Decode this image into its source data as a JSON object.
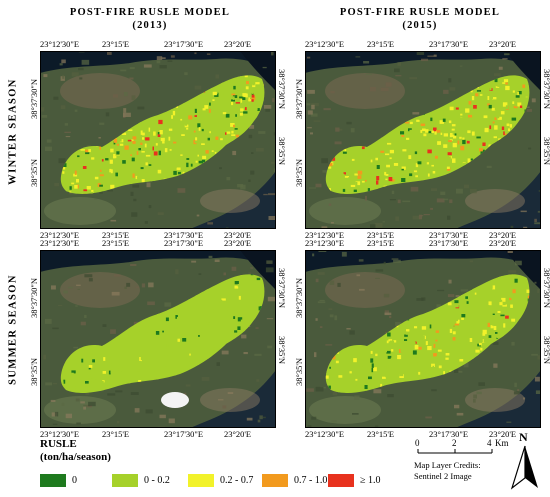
{
  "columns": [
    {
      "title_line1": "POST-FIRE RUSLE MODEL",
      "title_line2": "(2013)"
    },
    {
      "title_line1": "POST-FIRE RUSLE MODEL",
      "title_line2": "(2015)"
    }
  ],
  "rows": [
    {
      "title": "WINTER SEASON"
    },
    {
      "title": "SUMMER SEASON"
    }
  ],
  "panels": [
    {
      "id": "winter-2013",
      "season": "winter",
      "year": "2013",
      "top_ticks": [
        "23°12'30\"E",
        "23°15'E",
        "23°17'30\"E",
        "23°20'E"
      ],
      "bottom_ticks": [
        "23°12'30\"E",
        "23°15'E",
        "23°17'30\"E",
        "23°20'E"
      ],
      "left_ticks": [
        "38°37'30\"N",
        "38°35'N"
      ],
      "right_ticks": [
        "38°37'30\"N",
        "38°35'N"
      ]
    },
    {
      "id": "winter-2015",
      "season": "winter",
      "year": "2015",
      "top_ticks": [
        "23°12'30\"E",
        "23°15'E",
        "23°17'30\"E",
        "23°20'E"
      ],
      "bottom_ticks": [
        "23°12'30\"E",
        "23°15'E",
        "23°17'30\"E",
        "23°20'E"
      ],
      "left_ticks": [
        "38°37'30\"N",
        "38°35'N"
      ],
      "right_ticks": [
        "38°37'30\"N",
        "38°35'N"
      ]
    },
    {
      "id": "summer-2013",
      "season": "summer",
      "year": "2013",
      "top_ticks": [
        "23°12'30\"E",
        "23°15'E",
        "23°17'30\"E",
        "23°20'E"
      ],
      "bottom_ticks": [
        "23°12'30\"E",
        "23°15'E",
        "23°17'30\"E",
        "23°20'E"
      ],
      "left_ticks": [
        "38°37'30\"N",
        "38°35'N"
      ],
      "right_ticks": [
        "38°37'30\"N",
        "38°35'N"
      ]
    },
    {
      "id": "summer-2015",
      "season": "summer",
      "year": "2015",
      "top_ticks": [
        "23°12'30\"E",
        "23°15'E",
        "23°17'30\"E",
        "23°20'E"
      ],
      "bottom_ticks": [
        "23°12'30\"E",
        "23°15'E",
        "23°17'30\"E",
        "23°20'E"
      ],
      "left_ticks": [
        "38°37'30\"N",
        "38°35'N"
      ],
      "right_ticks": [
        "38°37'30\"N",
        "38°35'N"
      ]
    }
  ],
  "legend": {
    "title_line1": "RUSLE",
    "title_line2": "(ton/ha/season)",
    "classes": [
      {
        "label": "0",
        "color": "#1e7a1e"
      },
      {
        "label": "0 - 0.2",
        "color": "#a6d12a"
      },
      {
        "label": "0.2 - 0.7",
        "color": "#f2f22a"
      },
      {
        "label": "0.7 - 1.0",
        "color": "#f29a1e"
      },
      {
        "label": "≥ 1.0",
        "color": "#e8321e"
      }
    ]
  },
  "scale_bar": {
    "labels": [
      "0",
      "2",
      "4"
    ],
    "unit": "Km"
  },
  "north_arrow": {
    "label": "N"
  },
  "credits": {
    "line1": "Map Layer Credits:",
    "line2": "Sentinel 2 Image"
  }
}
